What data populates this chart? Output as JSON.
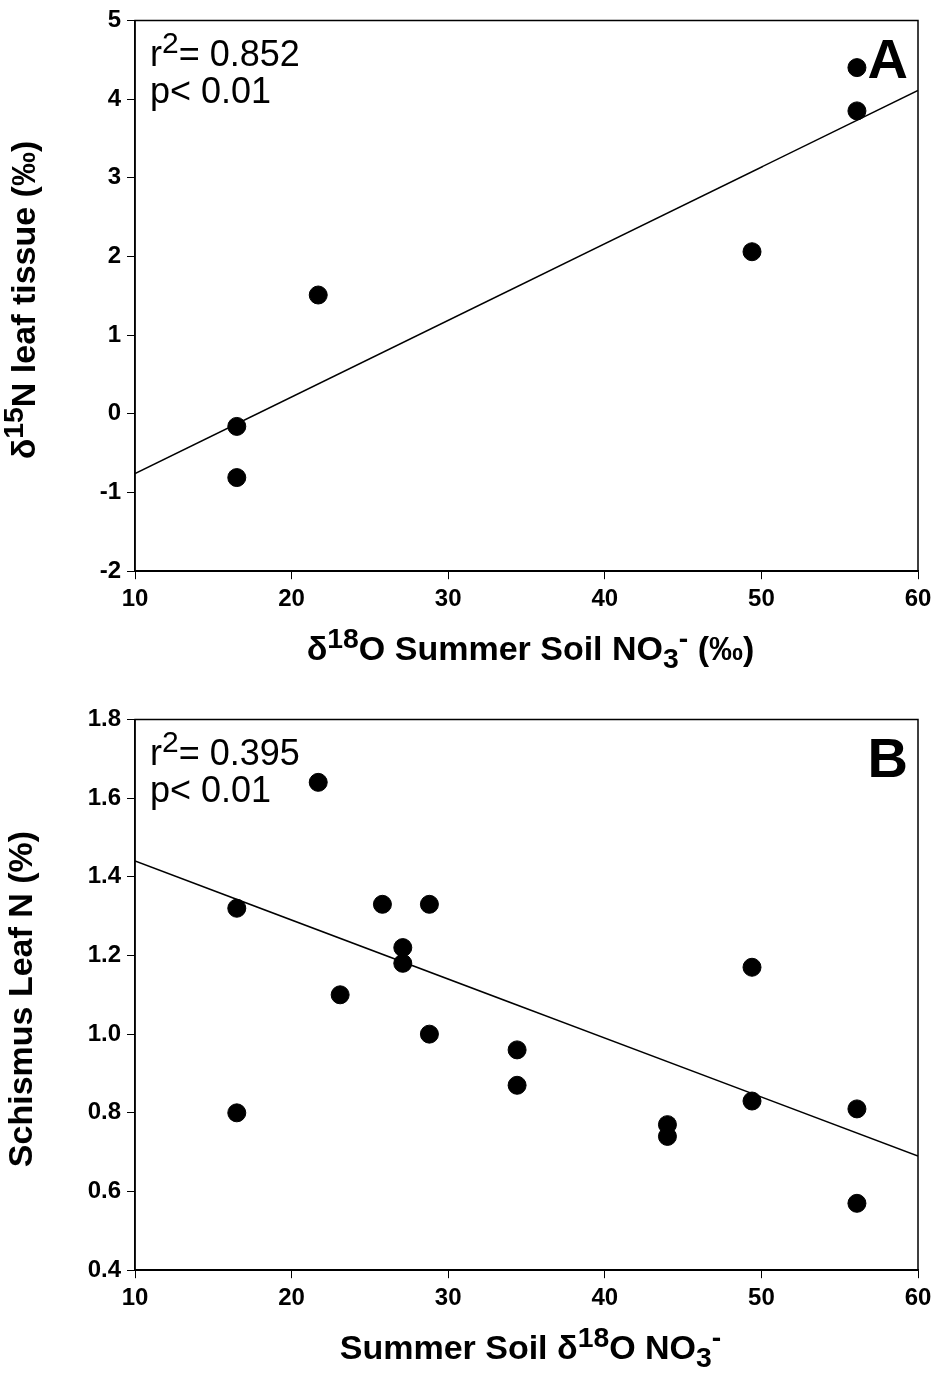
{
  "chart_data": [
    {
      "type": "scatter",
      "xlabel": "δ$^{18}$O Summer Soil NO$_{3}$$^{-}$ (‰)",
      "ylabel": "δ$^{15}$N leaf tissue (‰)",
      "xlim": [
        10,
        60
      ],
      "xticks": [
        10,
        20,
        30,
        40,
        50,
        60
      ],
      "ylim": [
        -2,
        5
      ],
      "yticks": [
        -2,
        -1,
        0,
        1,
        2,
        3,
        4,
        5
      ],
      "grid": false,
      "legend": false,
      "annotations": [
        "r$^{2}$= 0.852",
        "p< 0.01",
        "A"
      ],
      "series": [
        {
          "color": "#000000",
          "marker": "circle",
          "x": [
            56.1,
            56.1,
            49.4,
            21.7,
            16.5,
            16.5
          ],
          "values": [
            4.4,
            3.85,
            2.06,
            1.51,
            -0.16,
            -0.81
          ]
        },
        {
          "type": "line",
          "color": "#000000",
          "x": [
            10,
            60
          ],
          "values": [
            -0.76,
            4.11
          ]
        }
      ]
    },
    {
      "type": "scatter",
      "xlabel": "Summer Soil δ$^{18}$O NO$_{3}$$^{-}$",
      "ylabel": "Schismus Leaf N (%)",
      "xlim": [
        10,
        60
      ],
      "xticks": [
        10,
        20,
        30,
        40,
        50,
        60
      ],
      "ylim": [
        0.4,
        1.8
      ],
      "yticks": [
        {
          "value": 0.4,
          "label": "0.4"
        },
        {
          "value": 0.6,
          "label": "0.6"
        },
        {
          "value": 0.8,
          "label": "0.8"
        },
        {
          "value": 1.0,
          "label": "1.0"
        },
        {
          "value": 1.2,
          "label": "1.2"
        },
        {
          "value": 1.4,
          "label": "1.4"
        },
        {
          "value": 1.6,
          "label": "1.6"
        },
        {
          "value": 1.8,
          "label": "1.8"
        }
      ],
      "grid": false,
      "legend": false,
      "annotations": [
        "r$^{2}$= 0.395",
        "p< 0.01",
        "B"
      ],
      "series": [
        {
          "color": "#000000",
          "marker": "circle",
          "x": [
            21.7,
            16.5,
            16.5,
            23.1,
            25.8,
            27.1,
            27.1,
            28.8,
            28.8,
            34.4,
            34.4,
            44.0,
            44.0,
            49.4,
            49.4,
            56.1,
            56.1
          ],
          "values": [
            1.64,
            1.32,
            0.8,
            1.1,
            1.33,
            1.22,
            1.18,
            1.33,
            1.0,
            0.96,
            0.87,
            0.77,
            0.74,
            1.17,
            0.83,
            0.81,
            0.57
          ]
        },
        {
          "type": "line",
          "color": "#000000",
          "x": [
            10,
            60
          ],
          "values": [
            1.44,
            0.69
          ]
        }
      ]
    }
  ]
}
